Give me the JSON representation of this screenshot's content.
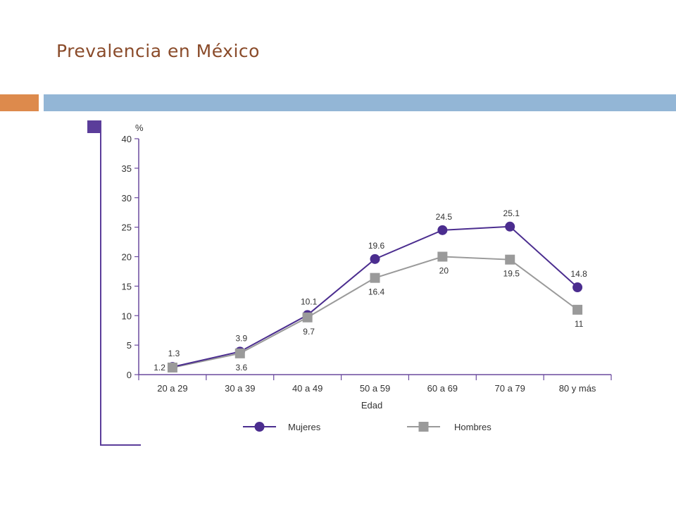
{
  "slide": {
    "title": "Prevalencia en México",
    "colors": {
      "title": "#8a4b2a",
      "bar_orange": "#dd8a4c",
      "bar_blue": "#93b6d6"
    }
  },
  "chart_data": {
    "type": "line",
    "ylabel": "%",
    "xlabel": "Edad",
    "categories": [
      "20  a 29",
      "30 a 39",
      "40 a 49",
      "50 a 59",
      "60 a 69",
      "70 a 79",
      "80 y más"
    ],
    "ylim": [
      0,
      40
    ],
    "yticks": [
      0,
      5,
      10,
      15,
      20,
      25,
      30,
      35,
      40
    ],
    "grid": false,
    "legend_position": "bottom",
    "series": [
      {
        "name": "Mujeres",
        "marker": "circle",
        "color": "#4b2d8f",
        "values": [
          1.3,
          3.9,
          10.1,
          19.6,
          24.5,
          25.1,
          14.8
        ],
        "labels": [
          "1.3",
          "3.9",
          "10.1",
          "19.6",
          "24.5",
          "25.1",
          "14.8"
        ]
      },
      {
        "name": "Hombres",
        "marker": "square",
        "color": "#9a9a9a",
        "values": [
          1.2,
          3.6,
          9.7,
          16.4,
          20,
          19.5,
          11
        ],
        "labels": [
          "1.2",
          "3.6",
          "9.7",
          "16.4",
          "20",
          "19.5",
          "11"
        ]
      }
    ],
    "axis_color": "#6a4a9e",
    "frame_color": "#5b3d9a"
  }
}
